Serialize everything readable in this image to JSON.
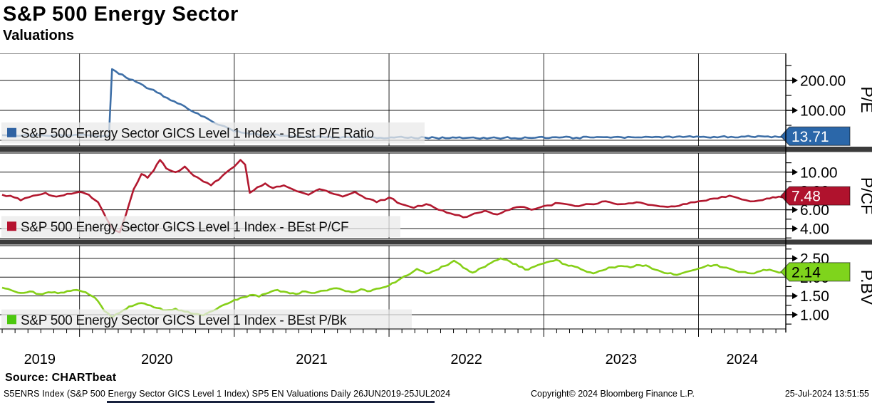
{
  "header": {
    "title": "S&P 500 Energy Sector",
    "subtitle": "Valuations"
  },
  "source_line": "Source: CHARTbeat",
  "footer": {
    "left": "S5ENRS Index (S&P 500 Energy Sector GICS Level 1 Index) SP5 EN Valuations  Daily 26JUN2019-25JUL2024",
    "center": "Copyright© 2024 Bloomberg Finance L.P.",
    "right": "25-Jul-2024 13:51:55"
  },
  "chart_data": {
    "type": "line",
    "title": "S&P 500 Energy Sector Valuations",
    "x_range": {
      "start_decimal_year": 2019.486,
      "end_decimal_year": 2024.564,
      "start_label": "26JUN2019",
      "end_label": "25JUL2024",
      "frequency": "Daily"
    },
    "x_labels": [
      "2019",
      "2020",
      "2021",
      "2022",
      "2023",
      "2024"
    ],
    "x_year_gridlines": [
      2020,
      2021,
      2022,
      2023,
      2024
    ],
    "grid": "on",
    "legend_position": "inside-left",
    "panels": [
      {
        "id": "pe",
        "legend": "S&P 500 Energy Sector GICS Level 1 Index - BEst P/E Ratio",
        "axis_title": "P/E",
        "line_color": "#3e6fa7",
        "marker_color": "#2f62a2",
        "badge": {
          "value": "13.71",
          "v": 13.71,
          "bg": "#2b67a9",
          "fg": "#ffffff"
        },
        "ylim": [
          -19,
          290.5
        ],
        "yticks": [
          {
            "v": 100,
            "label": "100.00"
          },
          {
            "v": 200,
            "label": "200.00"
          }
        ],
        "unlabeled_gridlines": [
          0
        ],
        "minor_yticks": [
          50,
          150,
          250
        ],
        "legend_strip_width": 594,
        "series": [
          [
            2019.5,
            17.2
          ],
          [
            2019.58,
            16.8
          ],
          [
            2019.67,
            15.9
          ],
          [
            2019.75,
            16.8
          ],
          [
            2019.83,
            16.2
          ],
          [
            2019.92,
            17.0
          ],
          [
            2020.0,
            17.6
          ],
          [
            2020.08,
            16.0
          ],
          [
            2020.15,
            13.5
          ],
          [
            2020.19,
            12.8
          ],
          [
            2020.21,
            238
          ],
          [
            2020.3,
            210
          ],
          [
            2020.5,
            160
          ],
          [
            2020.7,
            105
          ],
          [
            2020.85,
            65
          ],
          [
            2021.0,
            30
          ],
          [
            2021.15,
            20
          ],
          [
            2021.3,
            15
          ],
          [
            2021.5,
            12
          ],
          [
            2021.7,
            10.5
          ],
          [
            2021.9,
            9.8
          ],
          [
            2022.1,
            9.2
          ],
          [
            2022.3,
            8.4
          ],
          [
            2022.5,
            7.8
          ],
          [
            2022.7,
            7.5
          ],
          [
            2022.9,
            8.2
          ],
          [
            2023.1,
            9.0
          ],
          [
            2023.3,
            9.6
          ],
          [
            2023.5,
            10.4
          ],
          [
            2023.7,
            10.0
          ],
          [
            2023.9,
            10.8
          ],
          [
            2024.1,
            11.5
          ],
          [
            2024.3,
            12.2
          ],
          [
            2024.45,
            12.8
          ],
          [
            2024.56,
            13.71
          ]
        ]
      },
      {
        "id": "pcf",
        "legend": "S&P 500 Energy Sector GICS Level 1 Index - BEst P/CF",
        "axis_title": "P/CF",
        "line_color": "#b2182f",
        "marker_color": "#b5122f",
        "badge": {
          "value": "7.48",
          "v": 7.48,
          "bg": "#b0122d",
          "fg": "#ffffff"
        },
        "ylim": [
          2.94,
          12.03
        ],
        "yticks": [
          {
            "v": 4,
            "label": "4.00"
          },
          {
            "v": 6,
            "label": "6.00"
          },
          {
            "v": 8,
            "label": "8.00"
          },
          {
            "v": 10,
            "label": "10.00"
          }
        ],
        "unlabeled_gridlines": [],
        "minor_yticks": [
          3,
          5,
          7,
          9,
          11
        ],
        "legend_strip_width": 560,
        "series": [
          [
            2019.5,
            7.6
          ],
          [
            2019.58,
            7.3
          ],
          [
            2019.62,
            7.0
          ],
          [
            2019.7,
            7.5
          ],
          [
            2019.78,
            7.8
          ],
          [
            2019.85,
            7.4
          ],
          [
            2019.92,
            7.7
          ],
          [
            2020.0,
            7.9
          ],
          [
            2020.06,
            7.6
          ],
          [
            2020.12,
            6.8
          ],
          [
            2020.17,
            5.2
          ],
          [
            2020.22,
            3.9
          ],
          [
            2020.26,
            3.6
          ],
          [
            2020.3,
            5.5
          ],
          [
            2020.35,
            8.2
          ],
          [
            2020.4,
            9.8
          ],
          [
            2020.44,
            9.4
          ],
          [
            2020.48,
            10.2
          ],
          [
            2020.52,
            11.3
          ],
          [
            2020.56,
            10.4
          ],
          [
            2020.62,
            10.0
          ],
          [
            2020.68,
            10.6
          ],
          [
            2020.74,
            9.6
          ],
          [
            2020.8,
            9.0
          ],
          [
            2020.85,
            8.6
          ],
          [
            2020.9,
            9.2
          ],
          [
            2020.95,
            10.0
          ],
          [
            2021.0,
            10.6
          ],
          [
            2021.04,
            11.3
          ],
          [
            2021.07,
            10.8
          ],
          [
            2021.1,
            7.8
          ],
          [
            2021.15,
            8.4
          ],
          [
            2021.2,
            8.8
          ],
          [
            2021.25,
            8.3
          ],
          [
            2021.32,
            8.6
          ],
          [
            2021.4,
            8.0
          ],
          [
            2021.48,
            7.6
          ],
          [
            2021.55,
            8.2
          ],
          [
            2021.62,
            7.8
          ],
          [
            2021.7,
            7.4
          ],
          [
            2021.78,
            7.9
          ],
          [
            2021.85,
            7.2
          ],
          [
            2021.92,
            6.8
          ],
          [
            2022.0,
            7.3
          ],
          [
            2022.08,
            6.6
          ],
          [
            2022.16,
            6.2
          ],
          [
            2022.24,
            6.6
          ],
          [
            2022.32,
            6.0
          ],
          [
            2022.4,
            5.6
          ],
          [
            2022.48,
            5.2
          ],
          [
            2022.55,
            5.6
          ],
          [
            2022.62,
            5.9
          ],
          [
            2022.7,
            5.5
          ],
          [
            2022.78,
            6.0
          ],
          [
            2022.85,
            6.3
          ],
          [
            2022.92,
            6.0
          ],
          [
            2023.0,
            6.4
          ],
          [
            2023.1,
            6.7
          ],
          [
            2023.2,
            6.4
          ],
          [
            2023.3,
            6.6
          ],
          [
            2023.4,
            6.9
          ],
          [
            2023.5,
            6.6
          ],
          [
            2023.6,
            6.8
          ],
          [
            2023.7,
            6.5
          ],
          [
            2023.8,
            6.3
          ],
          [
            2023.9,
            6.6
          ],
          [
            2024.0,
            6.9
          ],
          [
            2024.1,
            7.2
          ],
          [
            2024.2,
            7.5
          ],
          [
            2024.28,
            7.1
          ],
          [
            2024.36,
            6.9
          ],
          [
            2024.44,
            7.2
          ],
          [
            2024.5,
            7.3
          ],
          [
            2024.56,
            7.48
          ]
        ]
      },
      {
        "id": "pbv",
        "legend": "S&P 500 Energy Sector GICS Level 1 Index - BEst P/Bk",
        "axis_title": "P.BV",
        "line_color": "#85cf17",
        "marker_color": "#4cc80e",
        "badge": {
          "value": "2.14",
          "v": 2.14,
          "bg": "#7fd41c",
          "fg": "#000000"
        },
        "ylim": [
          0.62,
          2.84
        ],
        "yticks": [
          {
            "v": 1.0,
            "label": "1.00"
          },
          {
            "v": 1.5,
            "label": "1.50"
          },
          {
            "v": 2.0,
            "label": "2.00"
          },
          {
            "v": 2.5,
            "label": "2.50"
          }
        ],
        "unlabeled_gridlines": [],
        "minor_yticks": [
          0.75,
          1.25,
          1.75,
          2.25,
          2.75
        ],
        "legend_strip_width": 576,
        "series": [
          [
            2019.5,
            1.72
          ],
          [
            2019.56,
            1.65
          ],
          [
            2019.62,
            1.58
          ],
          [
            2019.68,
            1.62
          ],
          [
            2019.74,
            1.55
          ],
          [
            2019.8,
            1.6
          ],
          [
            2019.86,
            1.57
          ],
          [
            2019.92,
            1.63
          ],
          [
            2019.98,
            1.66
          ],
          [
            2020.04,
            1.6
          ],
          [
            2020.1,
            1.45
          ],
          [
            2020.16,
            1.1
          ],
          [
            2020.21,
            0.93
          ],
          [
            2020.26,
            1.05
          ],
          [
            2020.32,
            1.22
          ],
          [
            2020.38,
            1.3
          ],
          [
            2020.44,
            1.26
          ],
          [
            2020.5,
            1.18
          ],
          [
            2020.56,
            1.12
          ],
          [
            2020.62,
            1.16
          ],
          [
            2020.68,
            1.08
          ],
          [
            2020.74,
            1.02
          ],
          [
            2020.8,
            0.98
          ],
          [
            2020.86,
            1.1
          ],
          [
            2020.92,
            1.24
          ],
          [
            2020.98,
            1.34
          ],
          [
            2021.04,
            1.45
          ],
          [
            2021.1,
            1.52
          ],
          [
            2021.16,
            1.48
          ],
          [
            2021.22,
            1.58
          ],
          [
            2021.28,
            1.66
          ],
          [
            2021.34,
            1.6
          ],
          [
            2021.4,
            1.55
          ],
          [
            2021.46,
            1.62
          ],
          [
            2021.52,
            1.58
          ],
          [
            2021.58,
            1.64
          ],
          [
            2021.64,
            1.7
          ],
          [
            2021.7,
            1.66
          ],
          [
            2021.76,
            1.6
          ],
          [
            2021.82,
            1.68
          ],
          [
            2021.88,
            1.63
          ],
          [
            2021.94,
            1.7
          ],
          [
            2022.0,
            1.78
          ],
          [
            2022.06,
            1.92
          ],
          [
            2022.12,
            2.05
          ],
          [
            2022.18,
            2.22
          ],
          [
            2022.24,
            2.1
          ],
          [
            2022.3,
            2.18
          ],
          [
            2022.36,
            2.3
          ],
          [
            2022.42,
            2.44
          ],
          [
            2022.48,
            2.25
          ],
          [
            2022.54,
            2.12
          ],
          [
            2022.6,
            2.25
          ],
          [
            2022.66,
            2.38
          ],
          [
            2022.72,
            2.5
          ],
          [
            2022.78,
            2.42
          ],
          [
            2022.84,
            2.28
          ],
          [
            2022.9,
            2.2
          ],
          [
            2022.96,
            2.32
          ],
          [
            2023.02,
            2.4
          ],
          [
            2023.08,
            2.46
          ],
          [
            2023.14,
            2.34
          ],
          [
            2023.2,
            2.28
          ],
          [
            2023.26,
            2.18
          ],
          [
            2023.32,
            2.1
          ],
          [
            2023.38,
            2.18
          ],
          [
            2023.44,
            2.26
          ],
          [
            2023.5,
            2.3
          ],
          [
            2023.56,
            2.26
          ],
          [
            2023.62,
            2.32
          ],
          [
            2023.68,
            2.28
          ],
          [
            2023.74,
            2.18
          ],
          [
            2023.8,
            2.1
          ],
          [
            2023.86,
            2.06
          ],
          [
            2023.92,
            2.14
          ],
          [
            2023.98,
            2.2
          ],
          [
            2024.04,
            2.28
          ],
          [
            2024.1,
            2.32
          ],
          [
            2024.16,
            2.26
          ],
          [
            2024.22,
            2.2
          ],
          [
            2024.28,
            2.14
          ],
          [
            2024.34,
            2.1
          ],
          [
            2024.4,
            2.16
          ],
          [
            2024.46,
            2.2
          ],
          [
            2024.52,
            2.12
          ],
          [
            2024.56,
            2.14
          ]
        ]
      }
    ]
  }
}
